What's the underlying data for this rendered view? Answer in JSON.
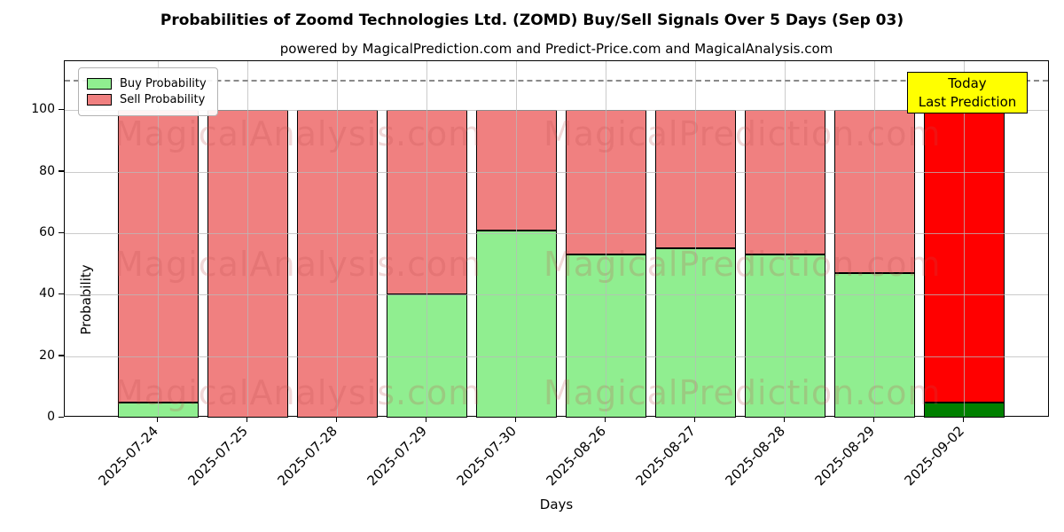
{
  "title": "Probabilities of Zoomd Technologies Ltd. (ZOMD) Buy/Sell Signals Over 5 Days (Sep 03)",
  "subtitle": "powered by MagicalPrediction.com and Predict-Price.com and MagicalAnalysis.com",
  "legend": {
    "buy_label": "Buy Probability",
    "sell_label": "Sell Probability"
  },
  "annotation_box": {
    "line1": "Today",
    "line2": "Last Prediction"
  },
  "watermarks": {
    "left": "MagicalAnalysis.com",
    "right": "MagicalPrediction.com"
  },
  "colors": {
    "buy": "#90EE90",
    "sell": "#F08080",
    "last_bar_buy": "#008000",
    "last_bar_sell": "#FF0000",
    "annotation_bg": "#FFFF00",
    "watermark": "#C25050",
    "grid": "#B9B9B9",
    "dashed_line": "#8A8A8A"
  },
  "chart_data": {
    "type": "bar",
    "stacked": true,
    "title": "Probabilities of Zoomd Technologies Ltd. (ZOMD) Buy/Sell Signals Over 5 Days (Sep 03)",
    "xlabel": "Days",
    "ylabel": "Probability",
    "categories": [
      "2025-07-24",
      "2025-07-25",
      "2025-07-28",
      "2025-07-29",
      "2025-07-30",
      "2025-08-26",
      "2025-08-27",
      "2025-08-28",
      "2025-08-29",
      "2025-09-02"
    ],
    "series": [
      {
        "name": "Buy Probability",
        "color": "#90EE90",
        "values": [
          5,
          0,
          0,
          40,
          61,
          53,
          55,
          53,
          47,
          5
        ]
      },
      {
        "name": "Sell Probability",
        "color": "#F08080",
        "values": [
          95,
          100,
          100,
          60,
          39,
          47,
          45,
          47,
          53,
          95
        ]
      }
    ],
    "highlight_last_bar": {
      "buy_color": "#008000",
      "sell_color": "#FF0000",
      "label": "Today / Last Prediction"
    },
    "yticks": [
      0,
      20,
      40,
      60,
      80,
      100
    ],
    "ylim": [
      0,
      116
    ],
    "dashed_line_y": 110,
    "grid": true,
    "legend_position": "upper-left"
  }
}
